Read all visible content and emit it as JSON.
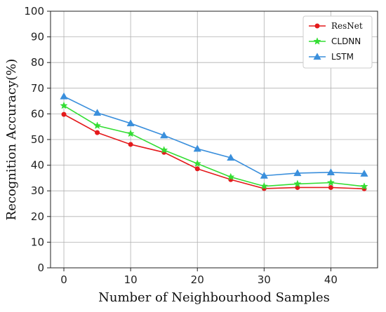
{
  "chart_data": {
    "type": "line",
    "title": "",
    "xlabel": "Number of Neighbourhood Samples",
    "ylabel": "Recognition Accuracy(%)",
    "xlim": [
      -2,
      47
    ],
    "ylim": [
      0,
      100
    ],
    "xticks": [
      0,
      10,
      20,
      30,
      40
    ],
    "yticks": [
      0,
      10,
      20,
      30,
      40,
      50,
      60,
      70,
      80,
      90,
      100
    ],
    "grid": true,
    "legend_position": "top-right",
    "x": [
      0,
      5,
      10,
      15,
      20,
      25,
      30,
      35,
      40,
      45
    ],
    "series": [
      {
        "name": "ResNet",
        "color": "#e41a1c",
        "marker": "circle",
        "values": [
          59.8,
          52.7,
          48.1,
          45.0,
          38.6,
          34.4,
          30.9,
          31.3,
          31.3,
          30.8
        ]
      },
      {
        "name": "CLDNN",
        "color": "#33dd33",
        "marker": "star",
        "values": [
          63.2,
          55.4,
          52.3,
          45.9,
          40.6,
          35.4,
          31.8,
          32.7,
          33.2,
          31.7
        ]
      },
      {
        "name": "LSTM",
        "color": "#3a8fdc",
        "marker": "triangle",
        "values": [
          66.8,
          60.4,
          56.3,
          51.6,
          46.4,
          42.9,
          35.9,
          36.9,
          37.2,
          36.7
        ]
      }
    ]
  }
}
